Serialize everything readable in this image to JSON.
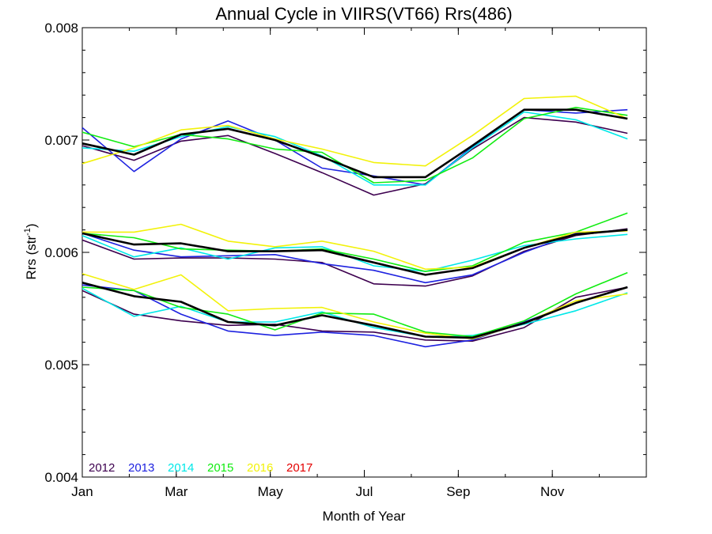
{
  "chart_data": {
    "type": "line",
    "title": "Annual Cycle in VIIRS(VT66) Rrs(486)",
    "xlabel": "Month of Year",
    "ylabel_main": "Rrs (str",
    "ylabel_sup": "-1",
    "ylabel_close": ")",
    "ylim": [
      0.004,
      0.008
    ],
    "xlim": [
      1,
      13
    ],
    "x_ticks": [
      {
        "value": 1,
        "label": "Jan"
      },
      {
        "value": 3,
        "label": "Mar"
      },
      {
        "value": 5,
        "label": "May"
      },
      {
        "value": 7,
        "label": "Jul"
      },
      {
        "value": 9,
        "label": "Sep"
      },
      {
        "value": 11,
        "label": "Nov"
      }
    ],
    "y_ticks": [
      {
        "value": 0.004,
        "label": "0.004"
      },
      {
        "value": 0.005,
        "label": "0.005"
      },
      {
        "value": 0.006,
        "label": "0.006"
      },
      {
        "value": 0.007,
        "label": "0.007"
      },
      {
        "value": 0.008,
        "label": "0.008"
      }
    ],
    "x": [
      1.0,
      2.1,
      3.1,
      4.1,
      5.1,
      6.1,
      7.2,
      8.3,
      9.3,
      10.4,
      11.5,
      12.6
    ],
    "legend": [
      {
        "label": "2012",
        "color": "#3d004f"
      },
      {
        "label": "2013",
        "color": "#1e22e0"
      },
      {
        "label": "2014",
        "color": "#00e8e8"
      },
      {
        "label": "2015",
        "color": "#11ec11"
      },
      {
        "label": "2016",
        "color": "#f2f20a"
      },
      {
        "label": "2017",
        "color": "#e40000"
      }
    ],
    "legend_position": "bottom-left",
    "mean_color": "#000000",
    "groups": [
      {
        "series": [
          {
            "name": "2012",
            "color": "#3d004f",
            "values": [
              0.00695,
              0.00682,
              0.00699,
              0.00704,
              0.00688,
              0.00671,
              0.00651,
              0.00661,
              0.00692,
              0.0072,
              0.00716,
              0.00706
            ]
          },
          {
            "name": "2013",
            "color": "#1e22e0",
            "values": [
              0.00711,
              0.00672,
              0.00701,
              0.00717,
              0.007,
              0.00675,
              0.00668,
              0.0066,
              0.00694,
              0.00727,
              0.00724,
              0.00727
            ]
          },
          {
            "name": "2014",
            "color": "#00e8e8",
            "values": [
              0.00693,
              0.0069,
              0.00703,
              0.00712,
              0.00703,
              0.00686,
              0.0066,
              0.0066,
              0.00693,
              0.00725,
              0.00718,
              0.00701
            ]
          },
          {
            "name": "2015",
            "color": "#11ec11",
            "values": [
              0.00707,
              0.00694,
              0.00705,
              0.00701,
              0.00692,
              0.00689,
              0.00662,
              0.00664,
              0.00684,
              0.00719,
              0.00729,
              0.00722
            ]
          },
          {
            "name": "2016",
            "color": "#f2f20a",
            "values": [
              0.00679,
              0.00693,
              0.00709,
              0.00713,
              0.00701,
              0.00692,
              0.0068,
              0.00677,
              0.00704,
              0.00737,
              0.00739,
              0.00719
            ]
          },
          {
            "name": "Mean",
            "color": "#000000",
            "values": [
              0.00697,
              0.00687,
              0.00705,
              0.0071,
              0.007,
              0.00685,
              0.00667,
              0.00667,
              0.00695,
              0.00727,
              0.00727,
              0.00719
            ]
          }
        ]
      },
      {
        "series": [
          {
            "name": "2012",
            "color": "#3d004f",
            "values": [
              0.00611,
              0.00594,
              0.00595,
              0.00595,
              0.00594,
              0.00591,
              0.00572,
              0.0057,
              0.00579,
              0.00601,
              0.00615,
              0.00621
            ]
          },
          {
            "name": "2013",
            "color": "#1e22e0",
            "values": [
              0.00617,
              0.00602,
              0.00596,
              0.00597,
              0.00598,
              0.0059,
              0.00584,
              0.00573,
              0.0058,
              0.006,
              0.00617,
              0.0062
            ]
          },
          {
            "name": "2014",
            "color": "#00e8e8",
            "values": [
              0.00615,
              0.00596,
              0.00604,
              0.00594,
              0.00604,
              0.00605,
              0.00588,
              0.00583,
              0.00593,
              0.00606,
              0.00612,
              0.00616
            ]
          },
          {
            "name": "2015",
            "color": "#11ec11",
            "values": [
              0.00617,
              0.00613,
              0.00603,
              0.00602,
              0.00601,
              0.00603,
              0.00594,
              0.00583,
              0.00588,
              0.00609,
              0.00618,
              0.00635
            ]
          },
          {
            "name": "2016",
            "color": "#f2f20a",
            "values": [
              0.00618,
              0.00618,
              0.00625,
              0.0061,
              0.00605,
              0.0061,
              0.00601,
              0.00585,
              0.00587,
              0.00604,
              0.00618,
              0.00619
            ]
          },
          {
            "name": "Mean",
            "color": "#000000",
            "values": [
              0.00617,
              0.00607,
              0.00608,
              0.00601,
              0.00601,
              0.00602,
              0.00591,
              0.0058,
              0.00586,
              0.00604,
              0.00616,
              0.0062
            ]
          }
        ]
      },
      {
        "series": [
          {
            "name": "2012",
            "color": "#3d004f",
            "values": [
              0.00566,
              0.00545,
              0.00539,
              0.00535,
              0.00536,
              0.0053,
              0.00529,
              0.00522,
              0.00521,
              0.00533,
              0.0056,
              0.00569
            ]
          },
          {
            "name": "2013",
            "color": "#1e22e0",
            "values": [
              0.00571,
              0.00566,
              0.00545,
              0.0053,
              0.00526,
              0.00529,
              0.00526,
              0.00516,
              0.00522,
              0.00538,
              0.00555,
              0.00569
            ]
          },
          {
            "name": "2014",
            "color": "#00e8e8",
            "values": [
              0.00568,
              0.00543,
              0.00552,
              0.00538,
              0.00538,
              0.00547,
              0.00533,
              0.00525,
              0.00526,
              0.00536,
              0.00548,
              0.00564
            ]
          },
          {
            "name": "2015",
            "color": "#11ec11",
            "values": [
              0.00569,
              0.00566,
              0.00551,
              0.00545,
              0.00531,
              0.00546,
              0.00545,
              0.00529,
              0.00525,
              0.00539,
              0.00563,
              0.00582
            ]
          },
          {
            "name": "2016",
            "color": "#f2f20a",
            "values": [
              0.00581,
              0.00567,
              0.0058,
              0.00548,
              0.0055,
              0.00551,
              0.00538,
              0.00528,
              0.00523,
              0.00537,
              0.00557,
              0.00563
            ]
          },
          {
            "name": "Mean",
            "color": "#000000",
            "values": [
              0.00573,
              0.00561,
              0.00556,
              0.00538,
              0.00535,
              0.00544,
              0.00535,
              0.00525,
              0.00524,
              0.00537,
              0.00555,
              0.00569
            ]
          }
        ]
      }
    ]
  }
}
